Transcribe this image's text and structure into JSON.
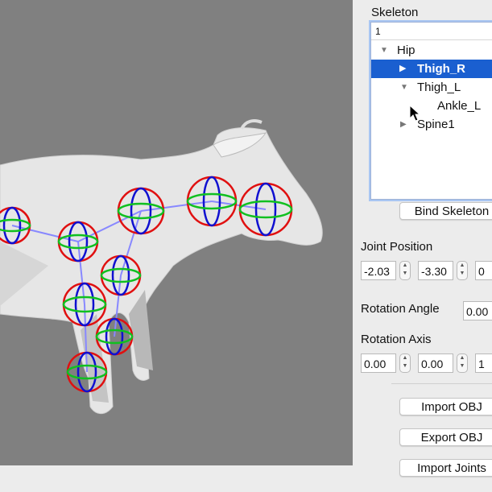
{
  "skeleton": {
    "label": "Skeleton",
    "column_header": "1",
    "items": [
      {
        "label": "Hip",
        "expanded": true
      },
      {
        "label": "Thigh_R",
        "selected": true
      },
      {
        "label": "Thigh_L",
        "expanded": true
      },
      {
        "label": "Ankle_L"
      },
      {
        "label": "Spine1"
      }
    ]
  },
  "buttons": {
    "bind": "Bind Skeleton",
    "import_obj": "Import OBJ",
    "export_obj": "Export OBJ",
    "import_joints": "Import Joints"
  },
  "joint_position": {
    "label": "Joint Position",
    "x": "-2.03",
    "y": "-3.30",
    "z": "0"
  },
  "rotation_angle": {
    "label": "Rotation Angle",
    "value": "0.00"
  },
  "rotation_axis": {
    "label": "Rotation Axis",
    "x": "0.00",
    "y": "0.00",
    "z": "1"
  },
  "colors": {
    "viewport_bg": "#808080",
    "selection": "#1a5fd0",
    "joint_x": "#e01010",
    "joint_y": "#1010d0",
    "joint_z": "#10c020",
    "bone": "#8888ff"
  }
}
